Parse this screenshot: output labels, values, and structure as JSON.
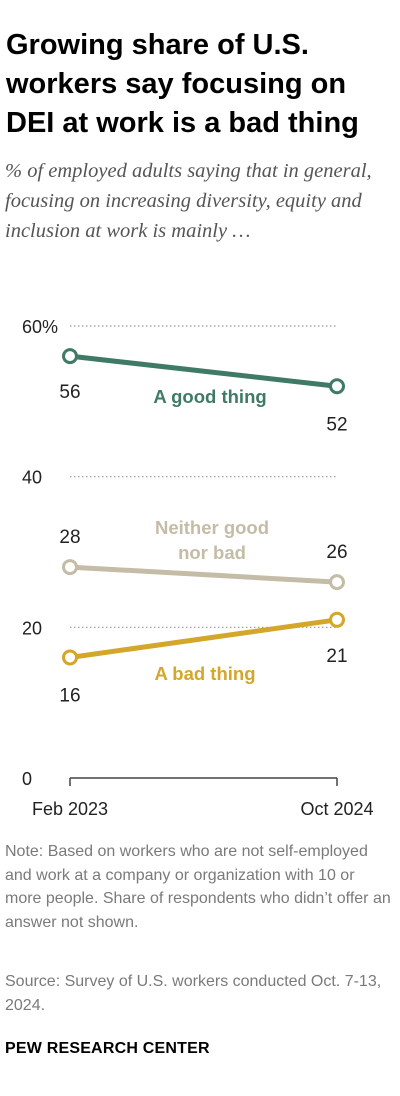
{
  "title": "Growing share of U.S. workers say focusing on DEI at work is a bad thing",
  "subtitle": "% of employed adults saying that in general, focusing on increasing diversity, equity and inclusion at work is mainly …",
  "note": "Note: Based on workers who are not self-employed and work at a company or organization with 10 or more people. Share of respondents who didn’t offer an answer not shown.",
  "source": "Source: Survey of U.S. workers conducted Oct. 7-13, 2024.",
  "footer": "PEW RESEARCH CENTER",
  "chart_data": {
    "type": "line",
    "x": [
      "Feb 2023",
      "Oct 2024"
    ],
    "ylim": [
      0,
      60
    ],
    "yticks": [
      0,
      20,
      40,
      60
    ],
    "ytick_labels": [
      "0",
      "20",
      "40",
      "60%"
    ],
    "grid": true,
    "series": [
      {
        "name": "A good thing",
        "label_lines": [
          "A good thing"
        ],
        "values": [
          56,
          52
        ],
        "color": "#3f7a66"
      },
      {
        "name": "Neither good nor bad",
        "label_lines": [
          "Neither good",
          "nor bad"
        ],
        "values": [
          28,
          26
        ],
        "color": "#c4bca6"
      },
      {
        "name": "A bad thing",
        "label_lines": [
          "A bad thing"
        ],
        "values": [
          16,
          21
        ],
        "color": "#d4a62a"
      }
    ]
  }
}
